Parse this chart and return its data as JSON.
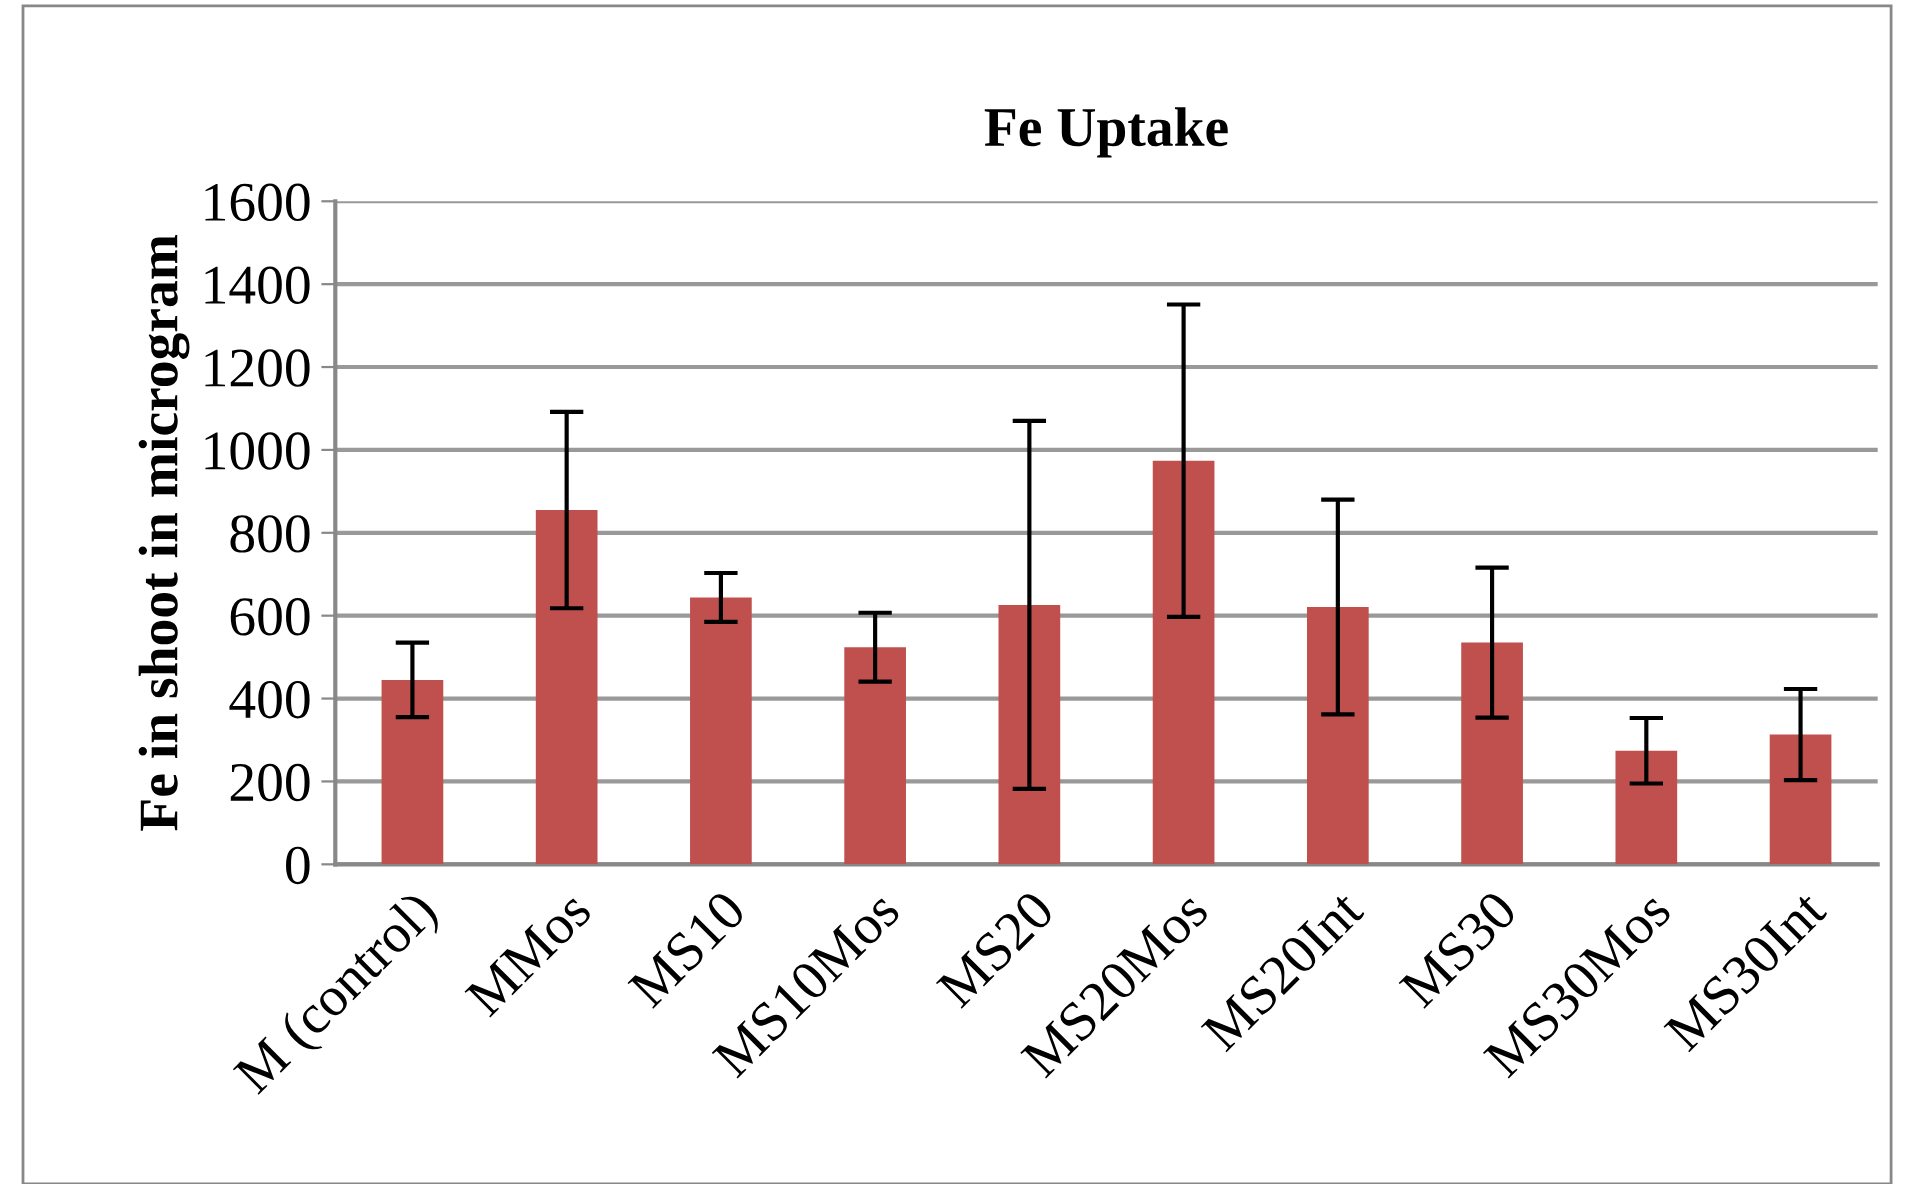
{
  "chart_data": {
    "type": "bar",
    "title": "Fe Uptake",
    "ylabel": "Fe in shoot in microgram",
    "categories": [
      "M (control)",
      "MMos",
      "MS10",
      "MS10Mos",
      "MS20",
      "MS20Mos",
      "MS20Int",
      "MS30",
      "MS30Mos",
      "MS30Int"
    ],
    "values": [
      445,
      855,
      644,
      524,
      626,
      974,
      621,
      535,
      274,
      313
    ],
    "errors": [
      90,
      237,
      59,
      83,
      444,
      377,
      259,
      181,
      79,
      110
    ],
    "color": "#c0504d",
    "ylim": [
      0,
      1600
    ],
    "yticks": [
      0,
      200,
      400,
      600,
      800,
      1000,
      1200,
      1400,
      1600
    ],
    "grid": "y"
  }
}
